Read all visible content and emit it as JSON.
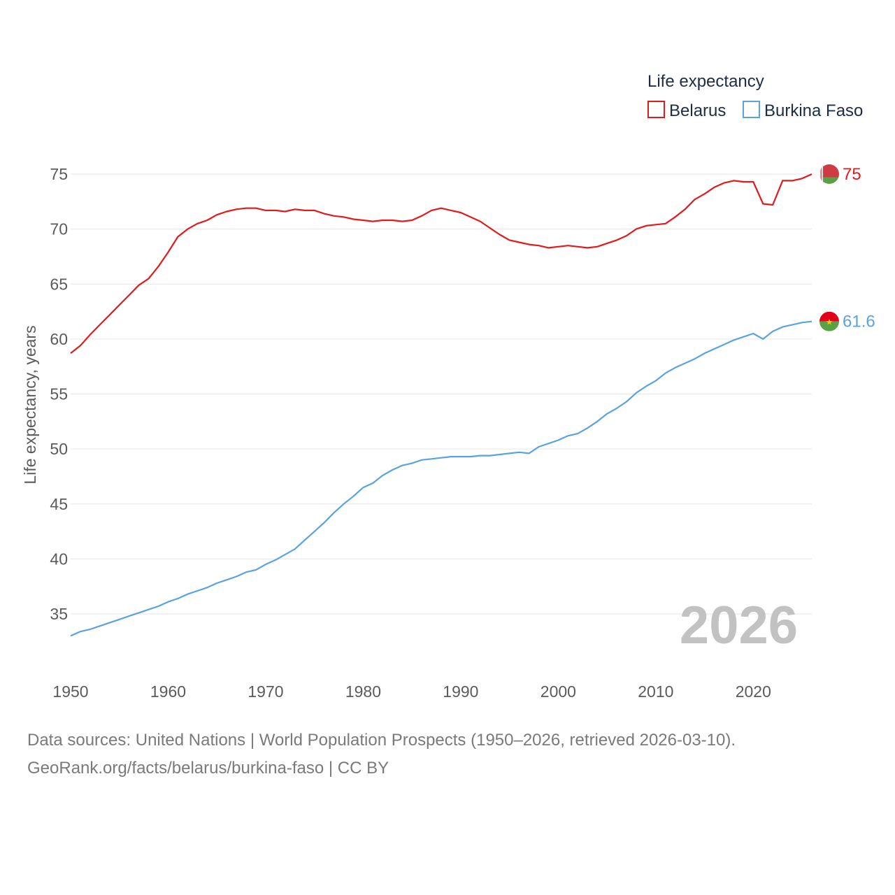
{
  "chart_data": {
    "type": "line",
    "legend_title": "Life expectancy",
    "ylabel": "Life expectancy, years",
    "xlabel": "",
    "xlim": [
      1950,
      2026
    ],
    "ylim": [
      32,
      77
    ],
    "x_ticks": [
      1950,
      1960,
      1970,
      1980,
      1990,
      2000,
      2010,
      2020
    ],
    "y_ticks": [
      35,
      40,
      45,
      50,
      55,
      60,
      65,
      70,
      75
    ],
    "current_year": "2026",
    "legend_position": "top-right",
    "series": [
      {
        "name": "Belarus",
        "color": "#e31a1c",
        "end_label": "75",
        "flag": "belarus-flag",
        "x": [
          1950,
          1951,
          1952,
          1953,
          1954,
          1955,
          1956,
          1957,
          1958,
          1959,
          1960,
          1961,
          1962,
          1963,
          1964,
          1965,
          1966,
          1967,
          1968,
          1969,
          1970,
          1971,
          1972,
          1973,
          1974,
          1975,
          1976,
          1977,
          1978,
          1979,
          1980,
          1981,
          1982,
          1983,
          1984,
          1985,
          1986,
          1987,
          1988,
          1989,
          1990,
          1991,
          1992,
          1993,
          1994,
          1995,
          1996,
          1997,
          1998,
          1999,
          2000,
          2001,
          2002,
          2003,
          2004,
          2005,
          2006,
          2007,
          2008,
          2009,
          2010,
          2011,
          2012,
          2013,
          2014,
          2015,
          2016,
          2017,
          2018,
          2019,
          2020,
          2021,
          2022,
          2023,
          2024,
          2025,
          2026
        ],
        "values": [
          58.7,
          59.4,
          60.4,
          61.3,
          62.2,
          63.1,
          64.0,
          64.9,
          65.5,
          66.6,
          67.9,
          69.3,
          70.0,
          70.5,
          70.8,
          71.3,
          71.6,
          71.8,
          71.9,
          71.9,
          71.7,
          71.7,
          71.6,
          71.8,
          71.7,
          71.7,
          71.4,
          71.2,
          71.1,
          70.9,
          70.8,
          70.7,
          70.8,
          70.8,
          70.7,
          70.8,
          71.2,
          71.7,
          71.9,
          71.7,
          71.5,
          71.1,
          70.7,
          70.1,
          69.5,
          69.0,
          68.8,
          68.6,
          68.5,
          68.3,
          68.4,
          68.5,
          68.4,
          68.3,
          68.4,
          68.7,
          69.0,
          69.4,
          70.0,
          70.3,
          70.4,
          70.5,
          71.1,
          71.8,
          72.7,
          73.2,
          73.8,
          74.2,
          74.4,
          74.3,
          74.3,
          72.3,
          72.2,
          74.4,
          74.4,
          74.6,
          75.0
        ]
      },
      {
        "name": "Burkina Faso",
        "color": "#5ba3e0",
        "end_label": "61.6",
        "flag": "burkina-faso-flag",
        "x": [
          1950,
          1951,
          1952,
          1953,
          1954,
          1955,
          1956,
          1957,
          1958,
          1959,
          1960,
          1961,
          1962,
          1963,
          1964,
          1965,
          1966,
          1967,
          1968,
          1969,
          1970,
          1971,
          1972,
          1973,
          1974,
          1975,
          1976,
          1977,
          1978,
          1979,
          1980,
          1981,
          1982,
          1983,
          1984,
          1985,
          1986,
          1987,
          1988,
          1989,
          1990,
          1991,
          1992,
          1993,
          1994,
          1995,
          1996,
          1997,
          1998,
          1999,
          2000,
          2001,
          2002,
          2003,
          2004,
          2005,
          2006,
          2007,
          2008,
          2009,
          2010,
          2011,
          2012,
          2013,
          2014,
          2015,
          2016,
          2017,
          2018,
          2019,
          2020,
          2021,
          2022,
          2023,
          2024,
          2025,
          2026
        ],
        "values": [
          33.0,
          33.4,
          33.6,
          33.9,
          34.2,
          34.5,
          34.8,
          35.1,
          35.4,
          35.7,
          36.1,
          36.4,
          36.8,
          37.1,
          37.4,
          37.8,
          38.1,
          38.4,
          38.8,
          39.0,
          39.5,
          39.9,
          40.4,
          40.9,
          41.7,
          42.5,
          43.3,
          44.2,
          45.0,
          45.7,
          46.5,
          46.9,
          47.6,
          48.1,
          48.5,
          48.7,
          49.0,
          49.1,
          49.2,
          49.3,
          49.3,
          49.3,
          49.4,
          49.4,
          49.5,
          49.6,
          49.7,
          49.6,
          50.2,
          50.5,
          50.8,
          51.2,
          51.4,
          51.9,
          52.5,
          53.2,
          53.7,
          54.3,
          55.1,
          55.7,
          56.2,
          56.9,
          57.4,
          57.8,
          58.2,
          58.7,
          59.1,
          59.5,
          59.9,
          60.2,
          60.5,
          60.0,
          60.7,
          61.1,
          61.3,
          61.5,
          61.6
        ]
      }
    ]
  },
  "footer": {
    "line1": "Data sources: United Nations | World Population Prospects (1950–2026, retrieved 2026-03-10).",
    "line2": "GeoRank.org/facts/belarus/burkina-faso | CC BY"
  }
}
